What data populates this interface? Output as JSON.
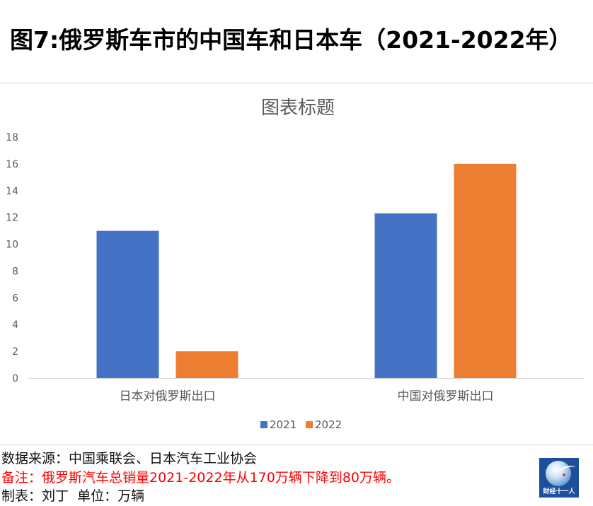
{
  "page": {
    "heading": "图7:俄罗斯车市的中国车和日本车（2021-2022年）"
  },
  "chart_data": {
    "type": "bar",
    "title": "图表标题",
    "categories": [
      "日本对俄罗斯出口",
      "中国对俄罗斯出口"
    ],
    "series": [
      {
        "name": "2021",
        "values": [
          11,
          12.3
        ],
        "color": "#4472C4"
      },
      {
        "name": "2022",
        "values": [
          2,
          16
        ],
        "color": "#ED7D31"
      }
    ],
    "ylim": [
      0,
      18
    ],
    "yticks": [
      0,
      2,
      4,
      6,
      8,
      10,
      12,
      14,
      16,
      18
    ],
    "grid": false,
    "legend": "bottom"
  },
  "footer": {
    "source": "数据来源：中国乘联会、日本汽车工业协会",
    "note": "备注：俄罗斯汽车总销量2021-2022年从170万辆下降到80万辆。",
    "note_color": "#FF0000",
    "credit": "制表：刘丁  单位：万辆"
  },
  "logo": {
    "text": "财经十一人",
    "background": "#1E4F9C"
  }
}
